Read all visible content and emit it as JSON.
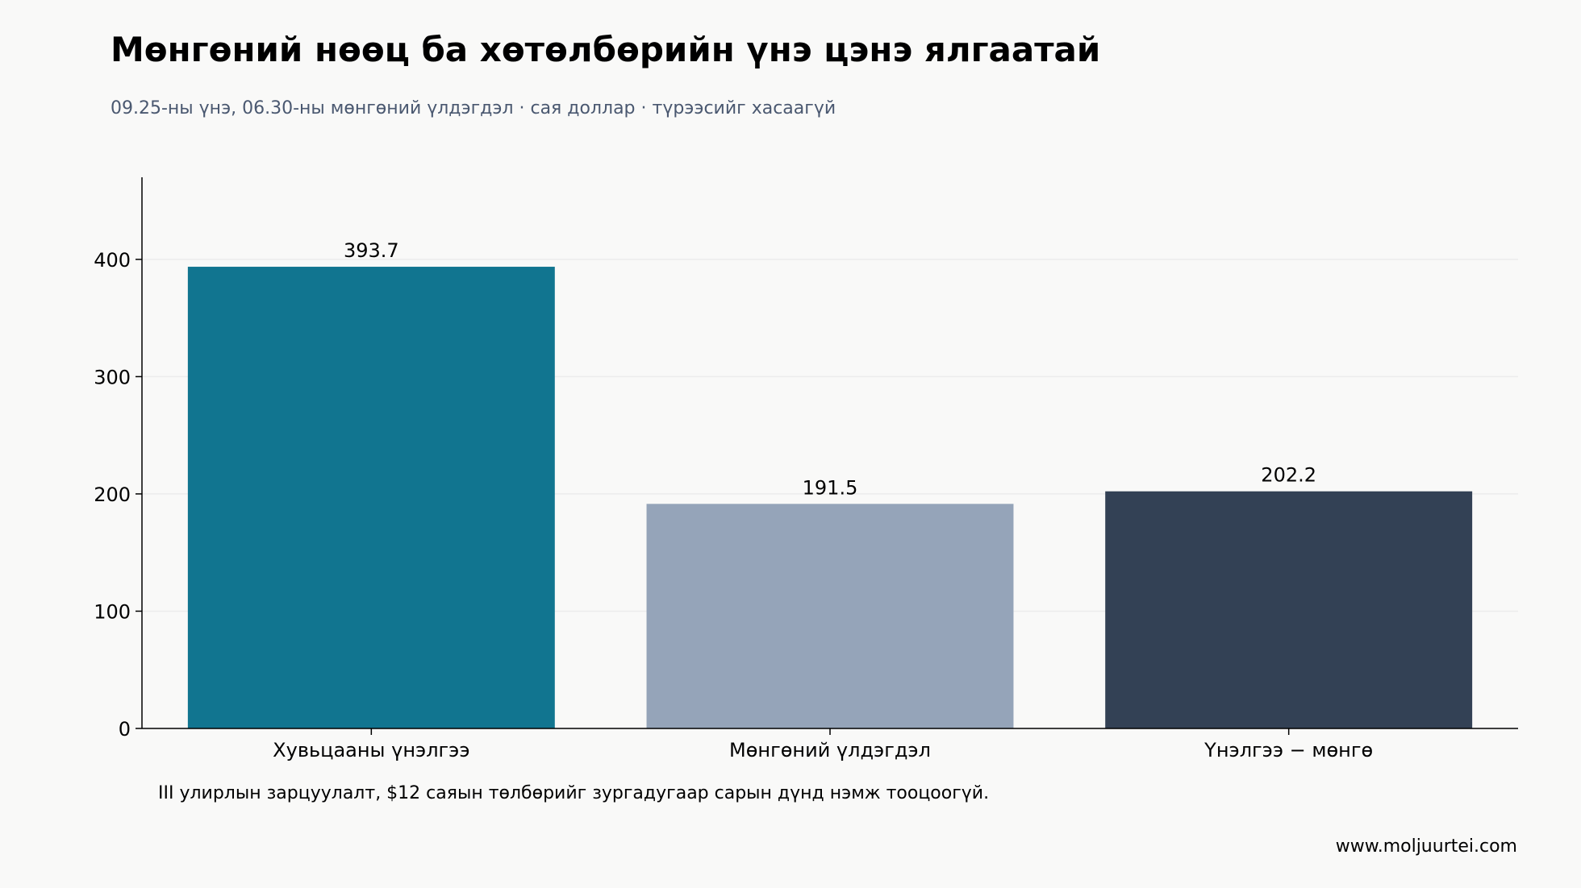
{
  "header": {
    "title": "Мөнгөний нөөц ба хөтөлбөрийн үнэ цэнэ ялгаатай",
    "subtitle": "09.25-ны үнэ, 06.30-ны мөнгөний үлдэгдэл · сая доллар · түрээсийг хасаагүй"
  },
  "footer": {
    "note": "III улирлын зарцуулалт, $12 саяын төлбөрийг зургадугаар сарын дүнд нэмж тооцоогүй.",
    "source": "www.moljuurtei.com"
  },
  "chart_data": {
    "type": "bar",
    "title": "Мөнгөний нөөц ба хөтөлбөрийн үнэ цэнэ ялгаатай",
    "subtitle": "09.25-ны үнэ, 06.30-ны мөнгөний үлдэгдэл · сая доллар · түрээсийг хасаагүй",
    "categories": [
      "Хувьцааны үнэлгээ",
      "Мөнгөний үлдэгдэл",
      "Үнэлгээ − мөнгө"
    ],
    "values": [
      393.7,
      191.5,
      202.2
    ],
    "value_labels": [
      "393.7",
      "191.5",
      "202.2"
    ],
    "colors": [
      "#117590",
      "#95a4b9",
      "#334155"
    ],
    "xlabel": "",
    "ylabel": "",
    "ylim": [
      0,
      470
    ],
    "yticks": [
      0,
      100,
      200,
      300,
      400
    ],
    "grid": true,
    "legend": "none"
  }
}
